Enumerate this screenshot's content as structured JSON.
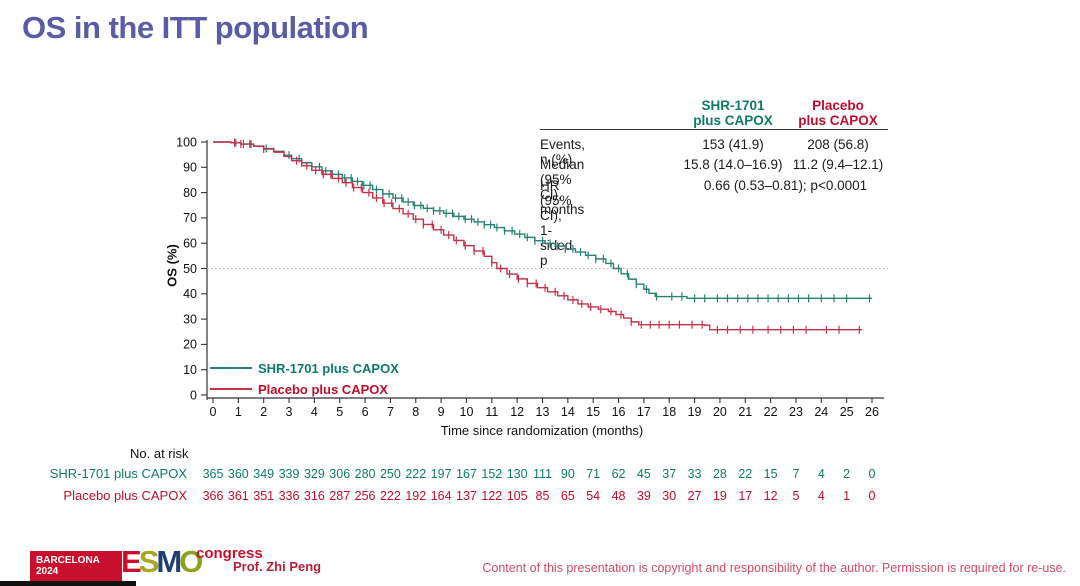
{
  "slide": {
    "title": "OS in the ITT population",
    "presenter": "Prof. Zhi Peng",
    "copyright": "Content of this presentation is copyright and responsibility of the author. Permission is required for re-use.",
    "logo": {
      "venue": "BARCELONA",
      "year": "2024",
      "e": "E",
      "s": "S",
      "m": "M",
      "o": "O",
      "congress": "congress"
    }
  },
  "colors": {
    "title": "#5b5ba6",
    "shr_text": "#0e7b69",
    "shr_curve": "#2a8173",
    "placebo_text": "#c00d2d",
    "placebo_curve": "#c5314b",
    "axis": "#333333",
    "ref_line": "#b5b5b5"
  },
  "stats_table": {
    "col_headers": [
      {
        "line1": "SHR-1701",
        "line2": "plus CAPOX"
      },
      {
        "line1": "Placebo",
        "line2": "plus CAPOX"
      }
    ],
    "rows": [
      {
        "label": "Events, n (%)",
        "shr": "153 (41.9)",
        "placebo": "208 (56.8)"
      },
      {
        "label": "Median (95% CI), months",
        "shr": "15.8 (14.0–16.9)",
        "placebo": "11.2 (9.4–12.1)"
      },
      {
        "label": "HR (95% CI); 1-sided p",
        "combined": "0.66 (0.53–0.81); p<0.0001"
      }
    ]
  },
  "chart_data": {
    "type": "line",
    "subtype": "kaplan-meier-step",
    "title": "",
    "xlabel": "Time since randomization (months)",
    "ylabel": "OS (%)",
    "xlim": [
      0,
      26
    ],
    "ylim": [
      0,
      100
    ],
    "xticks": [
      0,
      1,
      2,
      3,
      4,
      5,
      6,
      7,
      8,
      9,
      10,
      11,
      12,
      13,
      14,
      15,
      16,
      17,
      18,
      19,
      20,
      21,
      22,
      23,
      24,
      25,
      26
    ],
    "yticks": [
      0,
      10,
      20,
      30,
      40,
      50,
      60,
      70,
      80,
      90,
      100
    ],
    "reference_line_y": 50,
    "grid": false,
    "legend_position": "lower left",
    "series": [
      {
        "name": "SHR-1701 plus CAPOX",
        "color": "#2a8173",
        "median_months": 15.8,
        "plateau_pct": 38.2,
        "step_points": [
          [
            0,
            100
          ],
          [
            0.7,
            99.7
          ],
          [
            1.1,
            99.2
          ],
          [
            1.6,
            98.4
          ],
          [
            2,
            97.4
          ],
          [
            2.4,
            96.3
          ],
          [
            2.8,
            94.8
          ],
          [
            3.1,
            93.4
          ],
          [
            3.5,
            91.8
          ],
          [
            3.9,
            90.2
          ],
          [
            4.3,
            88.6
          ],
          [
            4.7,
            87.2
          ],
          [
            5.1,
            85.8
          ],
          [
            5.5,
            84.4
          ],
          [
            5.9,
            82.9
          ],
          [
            6.3,
            81.2
          ],
          [
            6.7,
            79.5
          ],
          [
            7.1,
            77.8
          ],
          [
            7.5,
            76.3
          ],
          [
            7.9,
            74.9
          ],
          [
            8.3,
            73.8
          ],
          [
            8.7,
            72.8
          ],
          [
            9.1,
            71.8
          ],
          [
            9.5,
            70.6
          ],
          [
            9.9,
            69.5
          ],
          [
            10.3,
            68.4
          ],
          [
            10.7,
            67.3
          ],
          [
            11.1,
            66.2
          ],
          [
            11.5,
            64.9
          ],
          [
            11.9,
            63.6
          ],
          [
            12.3,
            62.3
          ],
          [
            12.7,
            61
          ],
          [
            13.1,
            59.9
          ],
          [
            13.5,
            58.8
          ],
          [
            13.9,
            57.8
          ],
          [
            14.3,
            56.5
          ],
          [
            14.7,
            55.2
          ],
          [
            15.1,
            53.8
          ],
          [
            15.5,
            52
          ],
          [
            15.8,
            50
          ],
          [
            16.1,
            47.9
          ],
          [
            16.4,
            45.8
          ],
          [
            16.7,
            43.8
          ],
          [
            17,
            41.8
          ],
          [
            17.2,
            40.2
          ],
          [
            17.45,
            38.9
          ],
          [
            18.7,
            38.2
          ],
          [
            26,
            38.2
          ]
        ],
        "censor_times": [
          0.9,
          1.2,
          1.5,
          2.1,
          3,
          3.4,
          3.9,
          4.2,
          4.45,
          4.7,
          4.95,
          5.2,
          5.45,
          5.7,
          5.95,
          6.2,
          6.45,
          6.7,
          6.95,
          7.2,
          7.45,
          7.7,
          7.95,
          8.2,
          8.45,
          8.7,
          8.95,
          9.2,
          9.45,
          9.7,
          9.95,
          10.2,
          10.45,
          10.7,
          10.95,
          11.2,
          11.5,
          11.8,
          12.1,
          12.4,
          12.7,
          13,
          13.3,
          13.6,
          13.9,
          14.2,
          14.5,
          14.8,
          15.1,
          15.4,
          15.7,
          16,
          16.35,
          16.7,
          17.1,
          17.5,
          18.1,
          18.5,
          19,
          19.4,
          19.9,
          20.3,
          20.7,
          21.1,
          21.5,
          21.9,
          22.3,
          22.7,
          23.1,
          23.5,
          24,
          24.5,
          25,
          25.9
        ]
      },
      {
        "name": "Placebo plus CAPOX",
        "color": "#c5314b",
        "median_months": 11.2,
        "plateau_pct": 25.8,
        "step_points": [
          [
            0,
            100
          ],
          [
            0.7,
            99.7
          ],
          [
            1.1,
            99.2
          ],
          [
            1.6,
            98.3
          ],
          [
            2,
            97.2
          ],
          [
            2.4,
            96
          ],
          [
            2.8,
            94.3
          ],
          [
            3.1,
            92.6
          ],
          [
            3.5,
            90.6
          ],
          [
            3.9,
            88.8
          ],
          [
            4.3,
            87.2
          ],
          [
            4.7,
            85.6
          ],
          [
            5.1,
            83.9
          ],
          [
            5.5,
            82
          ],
          [
            5.9,
            80
          ],
          [
            6.3,
            77.9
          ],
          [
            6.7,
            75.8
          ],
          [
            7.1,
            73.7
          ],
          [
            7.5,
            71.6
          ],
          [
            7.9,
            69.5
          ],
          [
            8.3,
            67.4
          ],
          [
            8.7,
            65.3
          ],
          [
            9.1,
            63.2
          ],
          [
            9.5,
            61.1
          ],
          [
            9.9,
            59
          ],
          [
            10.3,
            56.9
          ],
          [
            10.7,
            54.8
          ],
          [
            11,
            52.3
          ],
          [
            11.2,
            50
          ],
          [
            11.6,
            47.8
          ],
          [
            12,
            45.9
          ],
          [
            12.4,
            44.1
          ],
          [
            12.8,
            42.4
          ],
          [
            13.2,
            40.8
          ],
          [
            13.6,
            39.2
          ],
          [
            14,
            37.6
          ],
          [
            14.4,
            36
          ],
          [
            14.8,
            34.8
          ],
          [
            15.2,
            33.9
          ],
          [
            15.6,
            33
          ],
          [
            15.9,
            31.8
          ],
          [
            16.2,
            30.4
          ],
          [
            16.5,
            28.9
          ],
          [
            16.8,
            27.8
          ],
          [
            19.4,
            27.6
          ],
          [
            19.6,
            25.8
          ],
          [
            25.6,
            25.8
          ]
        ],
        "censor_times": [
          0.85,
          1.1,
          1.45,
          2,
          3.3,
          3.7,
          4.05,
          4.35,
          4.65,
          4.95,
          5.25,
          5.55,
          5.85,
          6.15,
          6.45,
          6.75,
          7.05,
          7.35,
          7.7,
          8,
          8.3,
          8.65,
          9,
          9.3,
          9.6,
          9.95,
          10.3,
          10.65,
          11,
          11.35,
          11.7,
          12.05,
          12.4,
          12.75,
          13.1,
          13.5,
          13.85,
          14.2,
          14.55,
          14.9,
          15.3,
          15.7,
          16.1,
          16.5,
          16.9,
          17.25,
          17.6,
          18,
          18.4,
          18.9,
          19.3,
          19.9,
          20.3,
          20.8,
          21.3,
          21.9,
          22.4,
          22.9,
          23.4,
          24.2,
          24.7,
          25.5
        ]
      }
    ]
  },
  "at_risk": {
    "title": "No. at risk",
    "times": [
      0,
      1,
      2,
      3,
      4,
      5,
      6,
      7,
      8,
      9,
      10,
      11,
      12,
      13,
      14,
      15,
      16,
      17,
      18,
      19,
      20,
      21,
      22,
      23,
      24,
      25,
      26
    ],
    "rows": [
      {
        "label": "SHR-1701 plus CAPOX",
        "color": "#0e7b69",
        "values": [
          365,
          360,
          349,
          339,
          329,
          306,
          280,
          250,
          222,
          197,
          167,
          152,
          130,
          111,
          90,
          71,
          62,
          45,
          37,
          33,
          28,
          22,
          15,
          7,
          4,
          2,
          0
        ]
      },
      {
        "label": "Placebo plus CAPOX",
        "color": "#c00d2d",
        "values": [
          366,
          361,
          351,
          336,
          316,
          287,
          256,
          222,
          192,
          164,
          137,
          122,
          105,
          85,
          65,
          54,
          48,
          39,
          30,
          27,
          19,
          17,
          12,
          5,
          4,
          1,
          0
        ]
      }
    ]
  }
}
